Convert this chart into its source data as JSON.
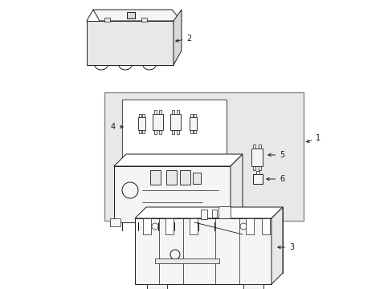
{
  "background_color": "#ffffff",
  "line_color": "#1a1a1a",
  "fill_white": "#ffffff",
  "fill_light": "#f5f5f5",
  "fill_mid": "#e8e8e8",
  "fill_dark": "#d8d8d8",
  "fig_width": 4.89,
  "fig_height": 3.6,
  "dpi": 100,
  "lw": 0.7
}
